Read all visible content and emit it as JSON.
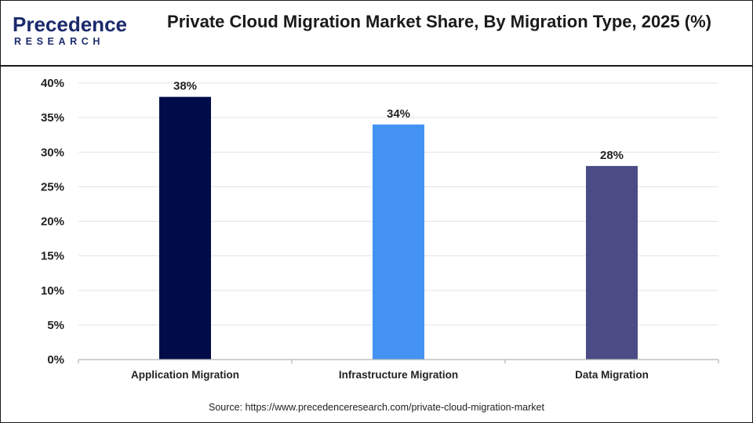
{
  "brand": {
    "logo_main": "Precedence",
    "logo_sub": "RESEARCH"
  },
  "chart_data": {
    "type": "bar",
    "title": "Private Cloud Migration Market  Share, By Migration Type, 2025 (%)",
    "categories": [
      "Application Migration",
      "Infrastructure Migration",
      "Data Migration"
    ],
    "values": [
      38,
      34,
      28
    ],
    "data_labels": [
      "38%",
      "34%",
      "28%"
    ],
    "bar_colors": [
      "#000c4a",
      "#4493f2",
      "#4b4c85"
    ],
    "ylim": [
      0,
      40
    ],
    "yticks": [
      0,
      5,
      10,
      15,
      20,
      25,
      30,
      35,
      40
    ],
    "ytick_labels": [
      "0%",
      "5%",
      "10%",
      "15%",
      "20%",
      "25%",
      "30%",
      "35%",
      "40%"
    ],
    "xlabel": "",
    "ylabel": "",
    "grid": true,
    "legend": "none"
  },
  "source": "Source: https://www.precedenceresearch.com/private-cloud-migration-market"
}
